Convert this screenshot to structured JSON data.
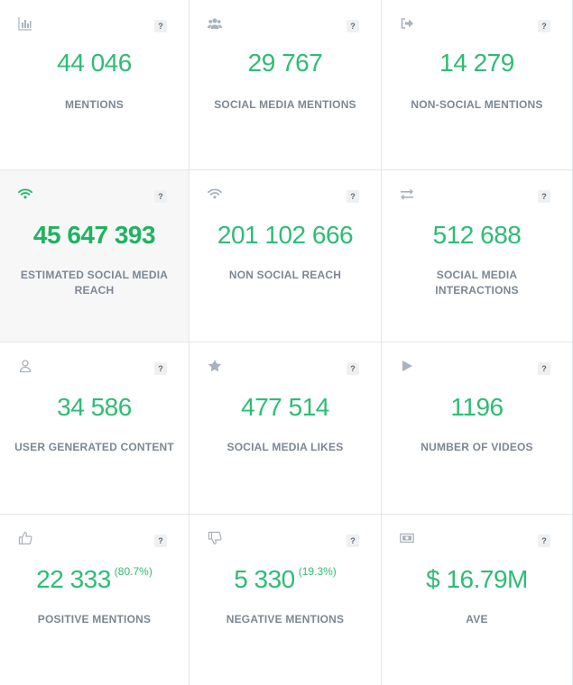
{
  "help_label": "?",
  "accent_color": "#2dbd74",
  "cards": [
    {
      "icon": "bar-chart-icon",
      "value": "44 046",
      "label": "MENTIONS"
    },
    {
      "icon": "users-icon",
      "value": "29 767",
      "label": "SOCIAL MEDIA MENTIONS"
    },
    {
      "icon": "sign-out-icon",
      "value": "14 279",
      "label": "NON-SOCIAL MENTIONS"
    },
    {
      "icon": "wifi-icon",
      "value": "45 647 393",
      "label": "ESTIMATED SOCIAL MEDIA REACH"
    },
    {
      "icon": "wifi-icon",
      "value": "201 102 666",
      "label": "NON SOCIAL REACH"
    },
    {
      "icon": "exchange-icon",
      "value": "512 688",
      "label": "SOCIAL MEDIA INTERACTIONS"
    },
    {
      "icon": "user-icon",
      "value": "34 586",
      "label": "USER GENERATED CONTENT"
    },
    {
      "icon": "star-icon",
      "value": "477 514",
      "label": "SOCIAL MEDIA LIKES"
    },
    {
      "icon": "play-icon",
      "value": "1196",
      "label": "NUMBER OF VIDEOS"
    },
    {
      "icon": "thumbs-up-icon",
      "value": "22 333",
      "percent": "(80.7%)",
      "label": "POSITIVE MENTIONS"
    },
    {
      "icon": "thumbs-down-icon",
      "value": "5 330",
      "percent": "(19.3%)",
      "label": "NEGATIVE MENTIONS"
    },
    {
      "icon": "money-icon",
      "value": "$ 16.79M",
      "label": "AVE"
    }
  ]
}
